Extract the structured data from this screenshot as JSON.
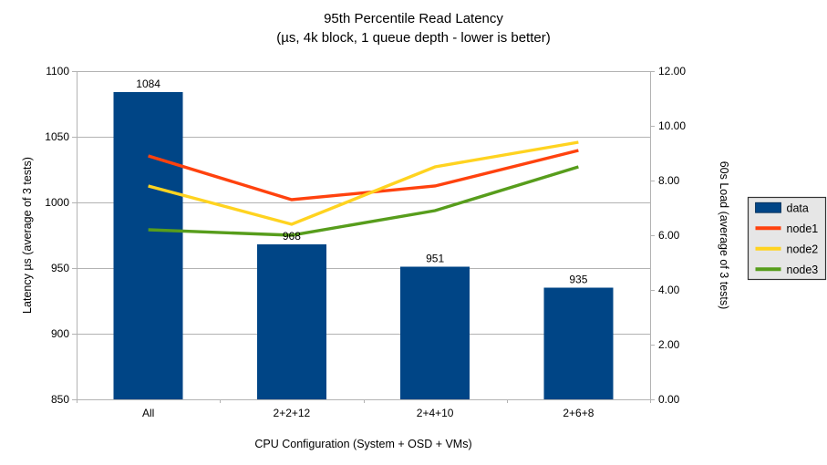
{
  "chart_data": {
    "type": "combo-bar-line",
    "title": "95th Percentile Read Latency",
    "subtitle": "(µs, 4k block, 1 queue depth - lower is better)",
    "categories": [
      "All",
      "2+2+12",
      "2+4+10",
      "2+6+8"
    ],
    "bar_series": [
      {
        "name": "data",
        "axis": "left",
        "color": "#004586",
        "values": [
          1084,
          968,
          951,
          935
        ],
        "data_labels": [
          "1084",
          "968",
          "951",
          "935"
        ]
      }
    ],
    "line_series": [
      {
        "name": "node1",
        "axis": "right",
        "color": "#ff420e",
        "values": [
          8.9,
          7.3,
          7.8,
          9.1
        ]
      },
      {
        "name": "node2",
        "axis": "right",
        "color": "#ffd320",
        "values": [
          7.8,
          6.4,
          8.5,
          9.4
        ]
      },
      {
        "name": "node3",
        "axis": "right",
        "color": "#579d1c",
        "values": [
          6.2,
          6.0,
          6.9,
          8.5
        ]
      }
    ],
    "axes": {
      "left": {
        "title": "Latency µs (average of 3 tests)",
        "min": 850,
        "max": 1100,
        "step": 50,
        "ticks": [
          "850",
          "900",
          "950",
          "1000",
          "1050",
          "1100"
        ]
      },
      "right": {
        "title": "60s Load (average of 3 tests)",
        "min": 0,
        "max": 12,
        "step": 2,
        "ticks": [
          "0.00",
          "2.00",
          "4.00",
          "6.00",
          "8.00",
          "10.00",
          "12.00"
        ]
      },
      "x": {
        "title": "CPU Configuration (System + OSD + VMs)"
      }
    },
    "legend": {
      "position": "right",
      "entries": [
        {
          "label": "data",
          "swatch": "rect",
          "color": "#004586"
        },
        {
          "label": "node1",
          "swatch": "line",
          "color": "#ff420e"
        },
        {
          "label": "node2",
          "swatch": "line",
          "color": "#ffd320"
        },
        {
          "label": "node3",
          "swatch": "line",
          "color": "#579d1c"
        }
      ]
    },
    "grid": {
      "horizontal": true,
      "vertical": false
    },
    "style": {
      "background": "#ffffff",
      "grid_color": "#b3b3b3",
      "axis_color": "#b3b3b3",
      "text_color": "#000000",
      "legend_bg": "#e6e6e6",
      "legend_border": "#333333"
    }
  }
}
